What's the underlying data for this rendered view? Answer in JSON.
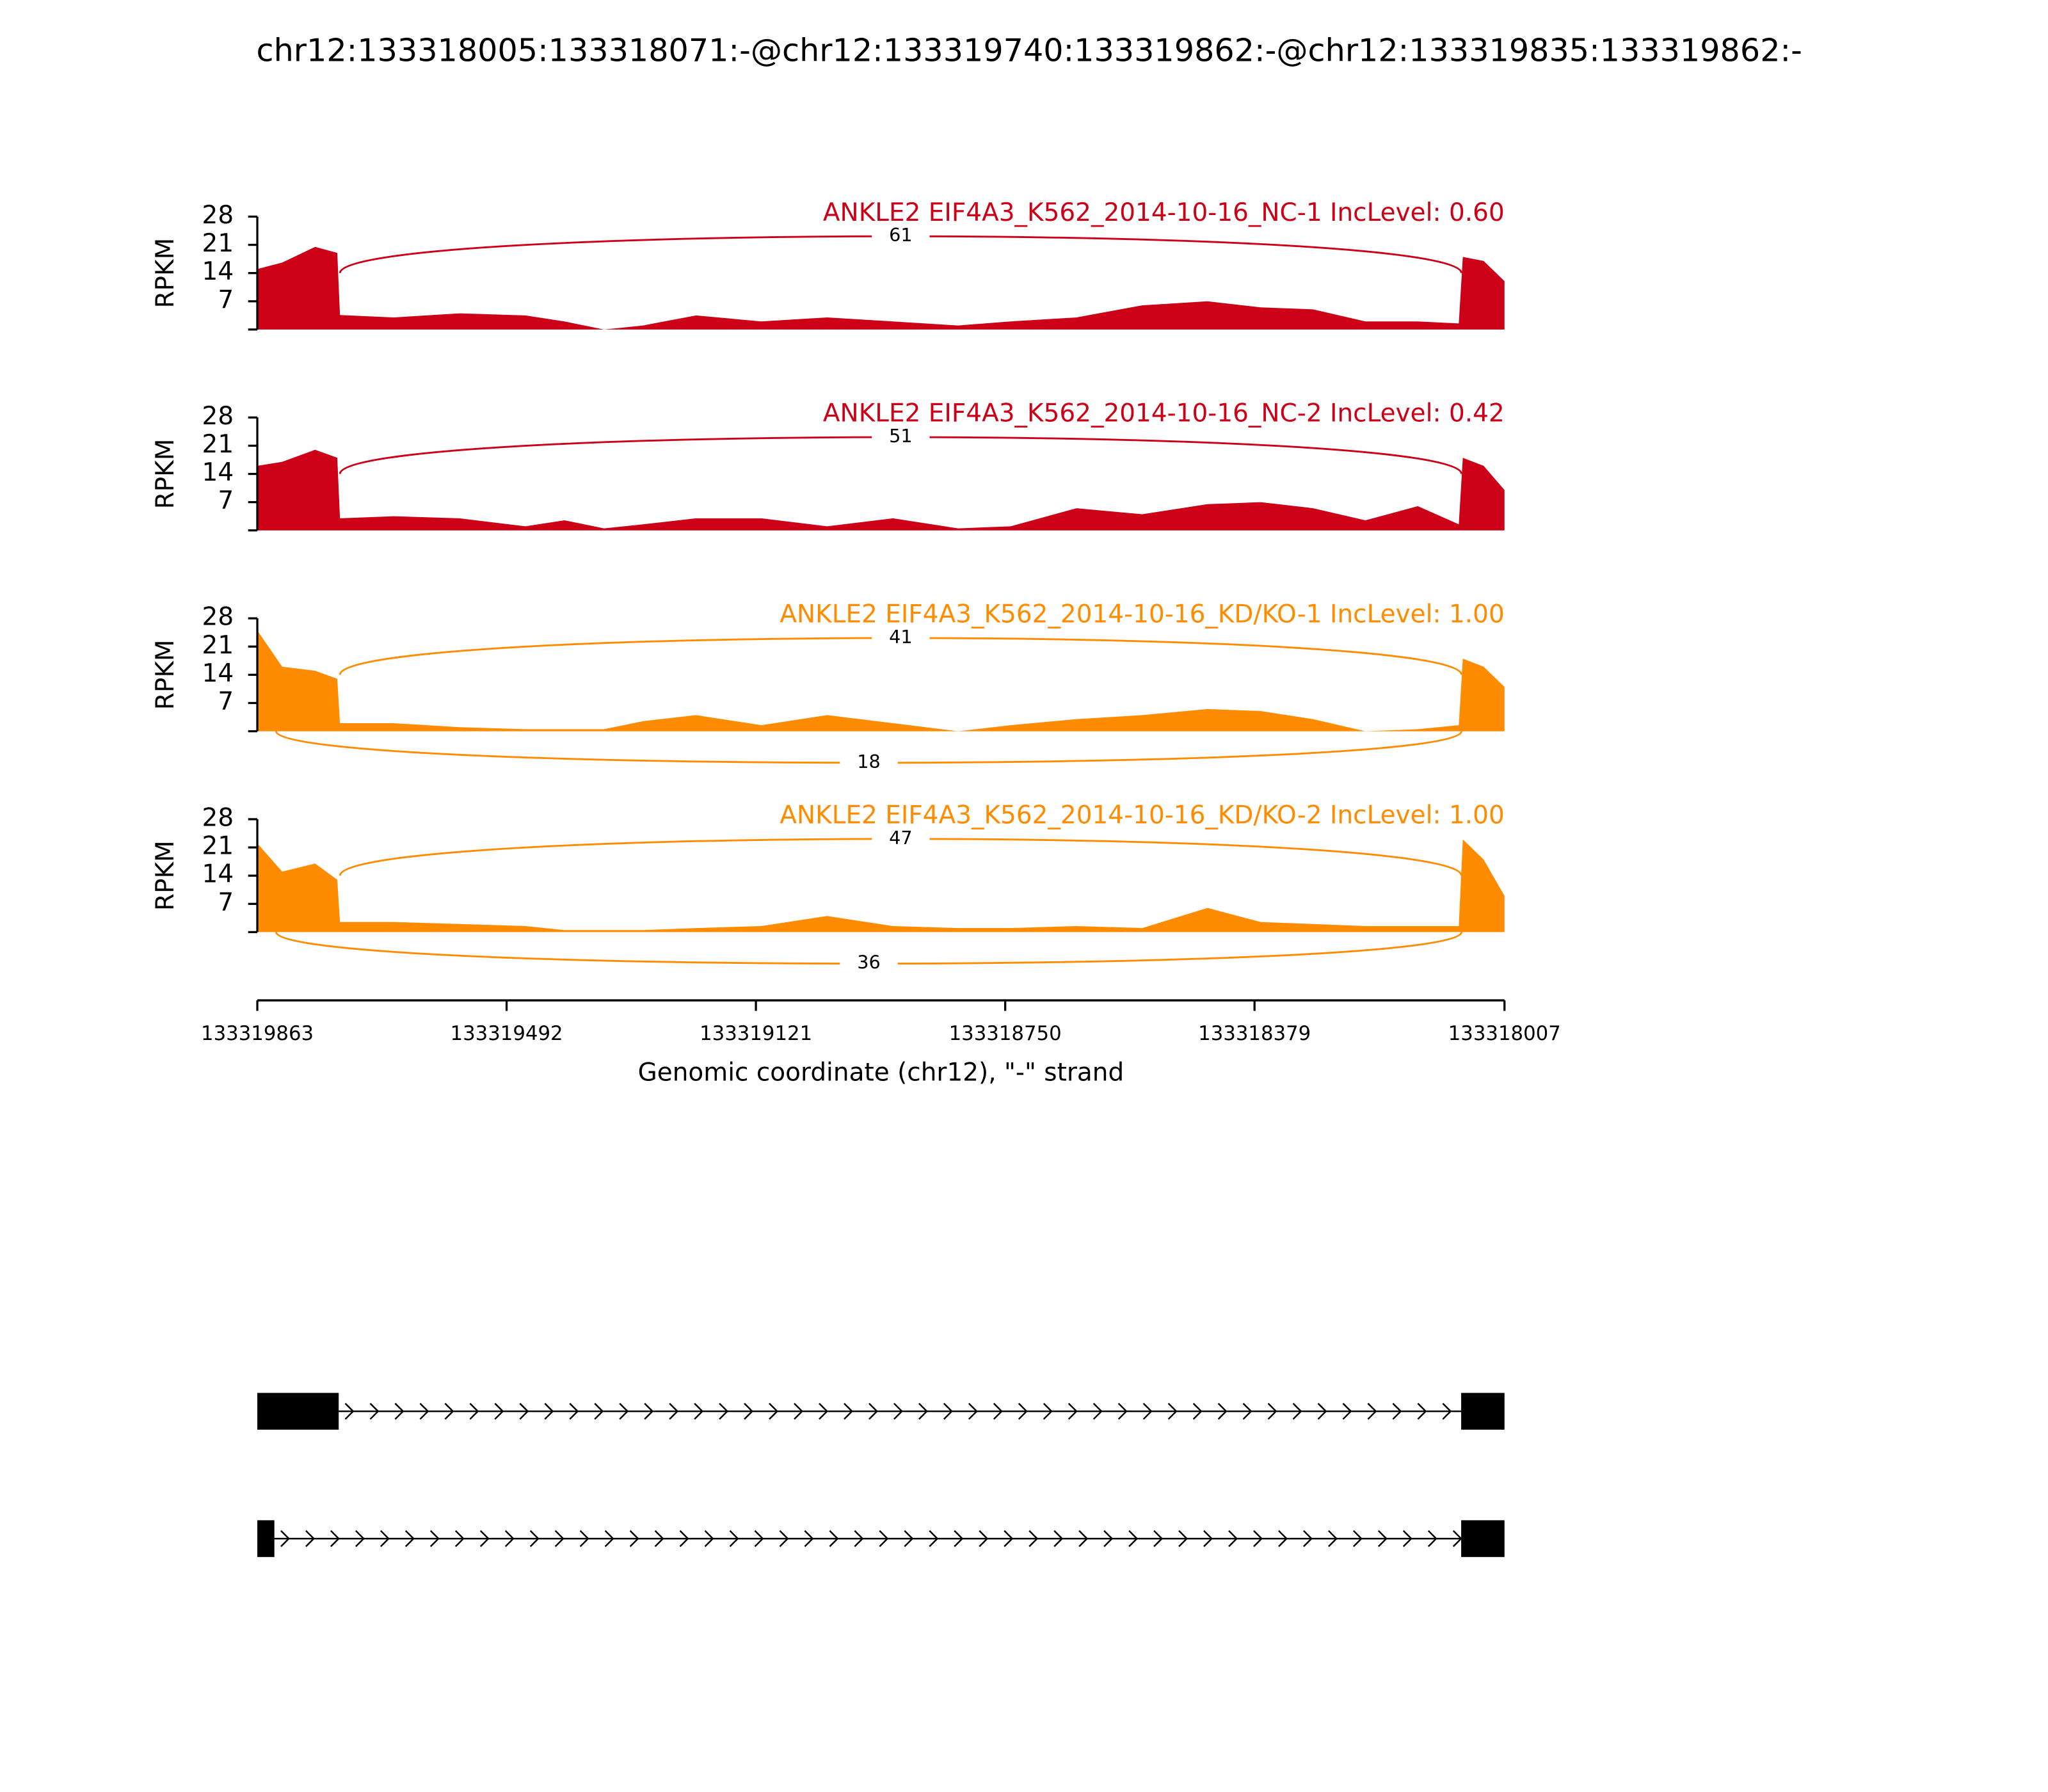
{
  "chart_data": {
    "type": "sashimi",
    "title": "chr12:133318005:133318071:-@chr12:133319740:133319862:-@chr12:133319835:133319862:-",
    "xlabel": "Genomic coordinate (chr12), \"-\" strand",
    "xlim": [
      133319863,
      133318007
    ],
    "xticks": [
      133319863,
      133319492,
      133319121,
      133318750,
      133318379,
      133318007
    ],
    "x": [
      133319863,
      133319826,
      133319777,
      133319744,
      133319740,
      133319660,
      133319562,
      133319464,
      133319406,
      133319347,
      133319289,
      133319210,
      133319113,
      133319015,
      133318917,
      133318820,
      133318742,
      133318644,
      133318546,
      133318449,
      133318370,
      133318292,
      133318214,
      133318136,
      133318075,
      133318069,
      133318038,
      133318007
    ],
    "panels": [
      {
        "title": "ANKLE2 EIF4A3_K562_2014-10-16_NC-1 IncLevel: 0.60",
        "color": "#cc0016",
        "ylabel": "RPKM",
        "ylim": [
          0,
          28
        ],
        "yticks": [
          7,
          14,
          21,
          28
        ],
        "values": [
          15,
          16.6,
          20.5,
          19,
          3.6,
          3,
          4,
          3.5,
          2,
          0,
          1,
          3.5,
          2,
          3,
          2,
          1,
          2,
          3,
          6,
          7,
          5.5,
          5,
          2,
          2,
          1.5,
          18,
          17,
          12
        ],
        "junctions": [
          {
            "start": 133319740,
            "end": 133318071,
            "count": 61,
            "side": "above"
          }
        ]
      },
      {
        "title": "ANKLE2 EIF4A3_K562_2014-10-16_NC-2 IncLevel: 0.42",
        "color": "#cc0016",
        "ylabel": "RPKM",
        "ylim": [
          0,
          28
        ],
        "yticks": [
          7,
          14,
          21,
          28
        ],
        "values": [
          16,
          17,
          20,
          18,
          3,
          3.5,
          3,
          1,
          2.5,
          0.5,
          1.5,
          3,
          3,
          1,
          3,
          0.5,
          1,
          5.5,
          4,
          6.5,
          7,
          5.5,
          2.5,
          6,
          1.5,
          18,
          16,
          10
        ],
        "junctions": [
          {
            "start": 133319740,
            "end": 133318071,
            "count": 51,
            "side": "above"
          }
        ]
      },
      {
        "title": "ANKLE2 EIF4A3_K562_2014-10-16_KD/KO-1 IncLevel: 1.00",
        "color": "#ff8c00",
        "ylabel": "RPKM",
        "ylim": [
          0,
          28
        ],
        "yticks": [
          7,
          14,
          21,
          28
        ],
        "values": [
          25,
          16,
          15,
          13,
          2,
          2,
          1,
          0.5,
          0.5,
          0.5,
          2.5,
          4,
          1.5,
          4,
          2,
          0,
          1.5,
          3,
          4,
          5.5,
          5,
          3,
          0,
          0.5,
          1.5,
          18,
          16,
          11
        ],
        "junctions": [
          {
            "start": 133319740,
            "end": 133318071,
            "count": 41,
            "side": "above"
          },
          {
            "start": 133319835,
            "end": 133318071,
            "count": 18,
            "side": "below"
          }
        ]
      },
      {
        "title": "ANKLE2 EIF4A3_K562_2014-10-16_KD/KO-2 IncLevel: 1.00",
        "color": "#ff8c00",
        "ylabel": "RPKM",
        "ylim": [
          0,
          28
        ],
        "yticks": [
          7,
          14,
          21,
          28
        ],
        "values": [
          22,
          15,
          17,
          13,
          2.5,
          2.5,
          2,
          1.5,
          0.5,
          0.5,
          0.5,
          1,
          1.5,
          4,
          1.5,
          1,
          1,
          1.5,
          1,
          6,
          2.5,
          2,
          1.5,
          1.5,
          1.5,
          23,
          18,
          9
        ],
        "junctions": [
          {
            "start": 133319740,
            "end": 133318071,
            "count": 47,
            "side": "above"
          },
          {
            "start": 133319835,
            "end": 133318071,
            "count": 36,
            "side": "below"
          }
        ]
      }
    ]
  }
}
